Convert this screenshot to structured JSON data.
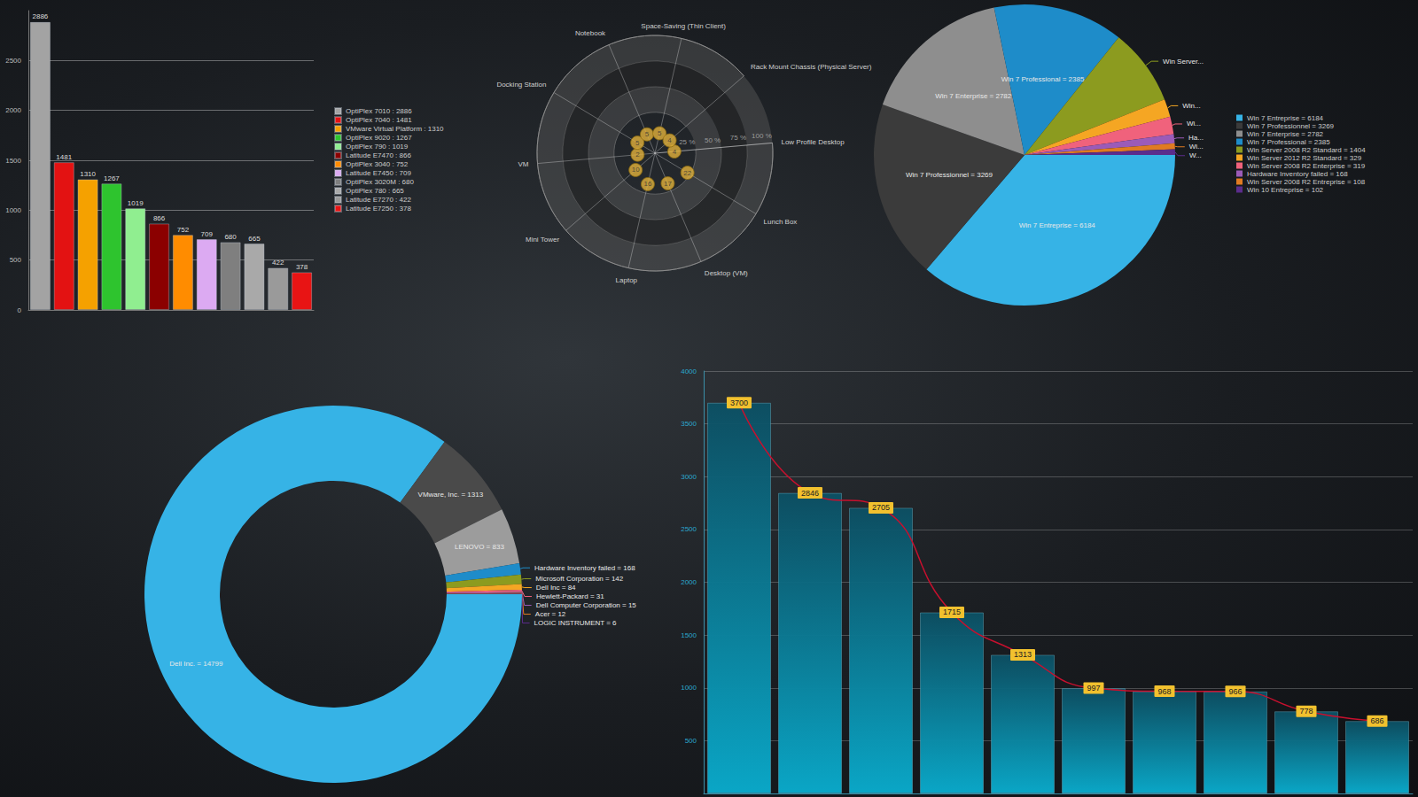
{
  "chart_data": [
    {
      "type": "bar",
      "categories": [
        null,
        null,
        null,
        null,
        null,
        null,
        null,
        null,
        null,
        null,
        null,
        null
      ],
      "legend_labels": [
        "OptiPlex 7010 : 2886",
        "OptiPlex 7040 : 1481",
        "VMware Virtual Platform : 1310",
        "OptiPlex 9020 : 1267",
        "OptiPlex 790 : 1019",
        "Latitude E7470 : 866",
        "OptiPlex 3040 : 752",
        "Latitude E7450 : 709",
        "OptiPlex 3020M : 680",
        "OptiPlex 780 : 665",
        "Latitude E7270 : 422",
        "Latitude E7250 : 378"
      ],
      "values": [
        2886,
        1481,
        1310,
        1267,
        1019,
        866,
        752,
        709,
        680,
        665,
        422,
        378
      ],
      "colors": [
        "#a3a3a3",
        "#e31212",
        "#f5a100",
        "#2ec42e",
        "#90ee90",
        "#8b0000",
        "#ff8c00",
        "#dcaaf2",
        "#7f7f7f",
        "#a9a9a9",
        "#9a9a9a",
        "#e81414"
      ],
      "ylim": [
        0,
        3000
      ],
      "yticks": [
        0,
        500,
        1000,
        1500,
        2000,
        2500
      ],
      "grid": true,
      "data_labels": true,
      "tick_labels": "y",
      "legend": "right"
    },
    {
      "type": "polar_scatter",
      "categories": [
        "Low Profile Desktop",
        "Lunch Box",
        "Desktop (VM)",
        "Laptop",
        "Mini Tower",
        "VM",
        "Docking Station",
        "Notebook",
        "Space-Saving (Thin Client)",
        "Rack Mount Chassis (Physical Server)"
      ],
      "values": [
        4,
        22,
        17,
        16,
        10,
        2,
        5,
        5,
        5,
        4
      ],
      "color": "#e2b23c",
      "ylim": [
        -15,
        100
      ],
      "yticks": [
        {
          "value": 25,
          "label": "25 %"
        },
        {
          "value": 50,
          "label": "50 %"
        },
        {
          "value": 75,
          "label": "75 %"
        },
        {
          "value": 100,
          "label": "100 %"
        }
      ],
      "grid": true,
      "data_labels": true
    },
    {
      "type": "pie",
      "legend_labels": [
        "Win 7 Entreprise = 6184",
        "Win 7 Professionnel = 3269",
        "Win 7 Enterprise = 2782",
        "Win 7 Professional = 2385",
        "Win Server 2008 R2 Standard = 1404",
        "Win Server 2012 R2 Standard = 329",
        "Win Server 2008 R2 Enterprise = 319",
        "Hardware Inventory failed = 168",
        "Win Server 2008 R2 Entreprise = 108",
        "Win 10 Entreprise = 102"
      ],
      "labels": [
        "Win 7 Entreprise = 6184",
        "Win 7 Professionnel = 3269",
        "Win 7 Enterprise = 2782",
        "Win 7 Professional = 2385",
        "Win Server...",
        "Win...",
        "Wi...",
        "Ha...",
        "Wi...",
        "W..."
      ],
      "values": [
        6184,
        3269,
        2782,
        2385,
        1404,
        329,
        319,
        168,
        108,
        102
      ],
      "colors": [
        "#36b3e6",
        "#3b3b3b",
        "#8e8e8e",
        "#1e8cc9",
        "#8c9b1f",
        "#f5a623",
        "#f0627c",
        "#9b5bb8",
        "#e07b22",
        "#5b2c8c"
      ],
      "legend": "right"
    },
    {
      "type": "donut",
      "labels": [
        "Dell Inc. = 14799",
        "VMware, Inc. = 1313",
        "LENOVO = 833",
        "Hardware Inventory failed = 168",
        "Microsoft Corporation = 142",
        "Dell Inc = 84",
        "Hewlett-Packard = 31",
        "Dell Computer Corporation = 15",
        "Acer = 12",
        "LOGIC INSTRUMENT = 6"
      ],
      "values": [
        14799,
        1313,
        833,
        168,
        142,
        84,
        31,
        15,
        12,
        6
      ],
      "colors": [
        "#36b3e6",
        "#4a4a4a",
        "#9c9c9c",
        "#1e8cc9",
        "#8c9b1f",
        "#f5a623",
        "#f0627c",
        "#9b5bb8",
        "#e07b22",
        "#5b2c8c"
      ]
    },
    {
      "type": "bar",
      "categories": [
        null,
        null,
        null,
        null,
        null,
        null,
        null,
        null,
        null,
        null
      ],
      "series": [
        {
          "type": "bar",
          "color": "#0aa6c6",
          "values": [
            3700,
            2846,
            2705,
            1715,
            1313,
            997,
            968,
            966,
            778,
            686
          ]
        },
        {
          "type": "line",
          "color": "#c8102e",
          "values": [
            3700,
            2846,
            2705,
            1715,
            1313,
            997,
            968,
            966,
            778,
            686
          ],
          "data_labels": true,
          "line_style": "smooth"
        }
      ],
      "ylim": [
        0,
        4000
      ],
      "yticks": [
        500,
        1000,
        1500,
        2000,
        2500,
        3000,
        3500,
        4000
      ],
      "grid": true,
      "tick_labels": "y"
    }
  ]
}
